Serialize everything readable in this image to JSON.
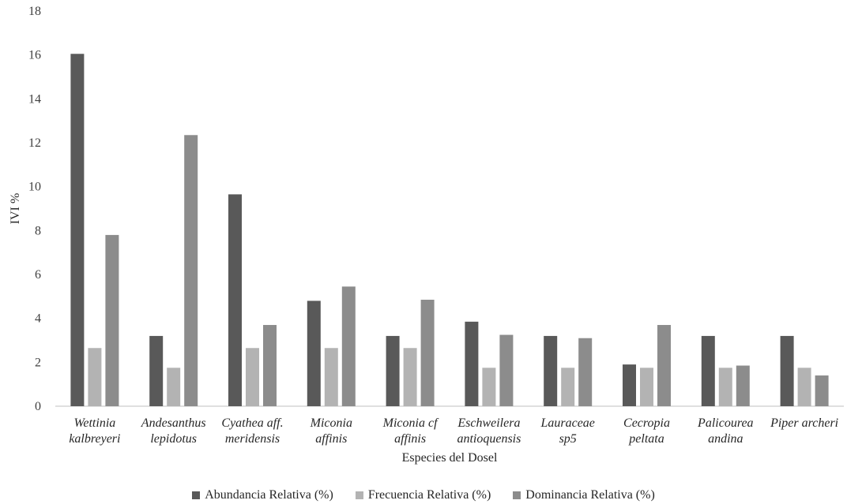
{
  "chart_data": {
    "type": "bar",
    "title": "",
    "xlabel": "Especies del Dosel",
    "ylabel": "IVI %",
    "ylim": [
      0,
      18
    ],
    "yticks": [
      "0",
      "2",
      "4",
      "6",
      "8",
      "10",
      "12",
      "14",
      "16",
      "18"
    ],
    "categories": [
      [
        "Wettinia",
        "kalbreyeri"
      ],
      [
        "Andesanthus",
        "lepidotus"
      ],
      [
        "Cyathea aff.",
        "meridensis"
      ],
      [
        "Miconia",
        "affinis"
      ],
      [
        "Miconia cf",
        "affinis"
      ],
      [
        "Eschweilera",
        "antioquensis"
      ],
      [
        "Lauraceae",
        "sp5"
      ],
      [
        "Cecropia",
        "peltata"
      ],
      [
        "Palicourea",
        "andina"
      ],
      [
        "Piper archeri"
      ]
    ],
    "series": [
      {
        "name": "Abundancia Relativa (%)",
        "color": "#595959",
        "values": [
          16.05,
          3.2,
          9.65,
          4.8,
          3.2,
          3.85,
          3.2,
          1.9,
          3.2,
          3.2
        ]
      },
      {
        "name": "Frecuencia Relativa (%)",
        "color": "#b3b3b3",
        "values": [
          2.65,
          1.75,
          2.65,
          2.65,
          2.65,
          1.75,
          1.75,
          1.75,
          1.75,
          1.75
        ]
      },
      {
        "name": "Dominancia Relativa (%)",
        "color": "#8c8c8c",
        "values": [
          7.8,
          12.35,
          3.7,
          5.45,
          4.85,
          3.25,
          3.1,
          3.7,
          1.85,
          1.4
        ]
      }
    ],
    "grid": false,
    "legend_position": "bottom"
  }
}
